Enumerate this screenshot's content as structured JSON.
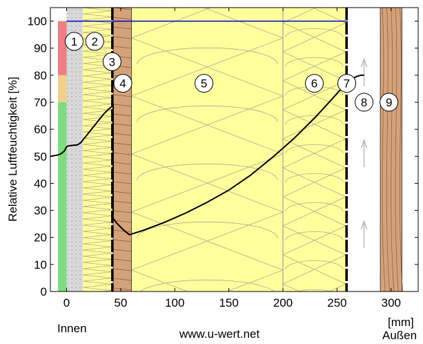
{
  "chart_data": {
    "type": "line",
    "title": "",
    "ylabel": "Relative Luftfeuchtigkeit [%]",
    "xlabel": "[mm]",
    "xlim": [
      -15,
      325
    ],
    "ylim": [
      0,
      105
    ],
    "xticks": [
      0,
      50,
      100,
      150,
      200,
      250,
      300
    ],
    "yticks": [
      0,
      10,
      20,
      30,
      40,
      50,
      60,
      70,
      80,
      90,
      100
    ],
    "grid": false,
    "series": [
      {
        "values": [
          [
            -15,
            50
          ],
          [
            -8,
            50.5
          ],
          [
            -5,
            51
          ],
          [
            -2,
            52
          ],
          [
            0,
            53.5
          ],
          [
            1,
            53.8
          ],
          [
            4,
            54
          ],
          [
            10,
            54.2
          ],
          [
            13,
            55
          ],
          [
            17,
            57
          ],
          [
            22,
            59.5
          ],
          [
            28,
            62.5
          ],
          [
            34,
            65.5
          ],
          [
            39,
            67.5
          ],
          [
            42,
            68.5
          ],
          [
            43,
            69
          ],
          [
            43,
            27
          ],
          [
            47,
            25
          ],
          [
            52,
            23
          ],
          [
            58,
            21
          ],
          [
            70,
            22.5
          ],
          [
            90,
            25.5
          ],
          [
            110,
            29
          ],
          [
            130,
            33
          ],
          [
            150,
            37.5
          ],
          [
            170,
            43
          ],
          [
            190,
            49.5
          ],
          [
            210,
            56.5
          ],
          [
            230,
            64.5
          ],
          [
            245,
            71
          ],
          [
            255,
            75.5
          ],
          [
            260,
            78
          ],
          [
            263,
            78.5
          ],
          [
            268,
            79.5
          ],
          [
            272,
            80
          ],
          [
            275,
            80
          ]
        ]
      },
      {
        "values": [
          [
            0,
            100
          ],
          [
            260,
            100
          ]
        ]
      }
    ],
    "comfort_bands": [
      {
        "from": 0,
        "to": 70,
        "color": "#7fdc7f"
      },
      {
        "from": 70,
        "to": 80,
        "color": "#f2cf8a"
      },
      {
        "from": 80,
        "to": 100,
        "color": "#ee7f86"
      }
    ],
    "layers": [
      {
        "id": "1",
        "from": 0,
        "to": 15,
        "label_x": 7,
        "label_y": 92.5
      },
      {
        "id": "2",
        "from": 15,
        "to": 42,
        "label_x": 26,
        "label_y": 92.5
      },
      {
        "id": "3",
        "from": 42,
        "to": 43,
        "label_x": 42,
        "label_y": 85
      },
      {
        "id": "4",
        "from": 43,
        "to": 60,
        "label_x": 52,
        "label_y": 77
      },
      {
        "id": "5",
        "from": 60,
        "to": 200,
        "label_x": 127,
        "label_y": 77
      },
      {
        "id": "6",
        "from": 200,
        "to": 258,
        "label_x": 229,
        "label_y": 77
      },
      {
        "id": "7",
        "from": 258,
        "to": 260,
        "label_x": 259,
        "label_y": 77
      },
      {
        "id": "8",
        "from": 260,
        "to": 290,
        "label_x": 275,
        "label_y": 70
      },
      {
        "id": "9",
        "from": 290,
        "to": 310,
        "label_x": 298,
        "label_y": 70
      }
    ],
    "colors": {
      "line": "#000000",
      "blue_line": "#0000cc",
      "plaster": "#d8d8d8",
      "insulation": "#ffff9e",
      "wood": "#d4a27a",
      "air": "#ffffff",
      "membrane": "#000000"
    }
  },
  "footer": {
    "inside": "Innen",
    "website": "www.u-wert.net",
    "unit": "[mm]",
    "outside": "Außen"
  }
}
